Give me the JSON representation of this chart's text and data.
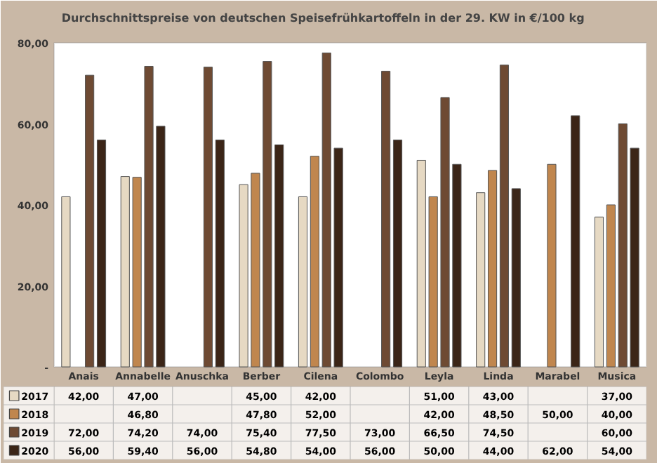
{
  "chart_data": {
    "type": "bar",
    "title": "Durchschnittspreise von deutschen Speisefrühkartoffeln in der 29. KW  in €/100 kg",
    "categories": [
      "Anais",
      "Annabelle",
      "Anuschka",
      "Berber",
      "Cilena",
      "Colombo",
      "Leyla",
      "Linda",
      "Marabel",
      "Musica"
    ],
    "series": [
      {
        "name": "2017",
        "color": "#e6d9c3",
        "values": [
          42,
          47,
          null,
          45,
          42,
          null,
          51,
          43,
          null,
          37
        ],
        "value_labels": [
          "42,00",
          "47,00",
          null,
          "45,00",
          "42,00",
          null,
          "51,00",
          "43,00",
          null,
          "37,00"
        ]
      },
      {
        "name": "2018",
        "color": "#c0864e",
        "values": [
          null,
          46.8,
          null,
          47.8,
          52,
          null,
          42,
          48.5,
          50,
          40
        ],
        "value_labels": [
          null,
          "46,80",
          null,
          "47,80",
          "52,00",
          null,
          "42,00",
          "48,50",
          "50,00",
          "40,00"
        ]
      },
      {
        "name": "2019",
        "color": "#6e4a33",
        "values": [
          72,
          74.2,
          74,
          75.4,
          77.5,
          73,
          66.5,
          74.5,
          null,
          60
        ],
        "value_labels": [
          "72,00",
          "74,20",
          "74,00",
          "75,40",
          "77,50",
          "73,00",
          "66,50",
          "74,50",
          null,
          "60,00"
        ]
      },
      {
        "name": "2020",
        "color": "#3b2517",
        "values": [
          56,
          59.4,
          56,
          54.8,
          54,
          56,
          50,
          44,
          62,
          54
        ],
        "value_labels": [
          "56,00",
          "59,40",
          "56,00",
          "54,80",
          "54,00",
          "56,00",
          "50,00",
          "44,00",
          "62,00",
          "54,00"
        ]
      }
    ],
    "ylim": [
      0,
      80
    ],
    "yticks": [
      {
        "value": 0,
        "label": "-"
      },
      {
        "value": 20,
        "label": "20,00"
      },
      {
        "value": 40,
        "label": "40,00"
      },
      {
        "value": 60,
        "label": "60,00"
      },
      {
        "value": 80,
        "label": "80,00"
      }
    ],
    "grid": false,
    "legend": "bottom"
  }
}
